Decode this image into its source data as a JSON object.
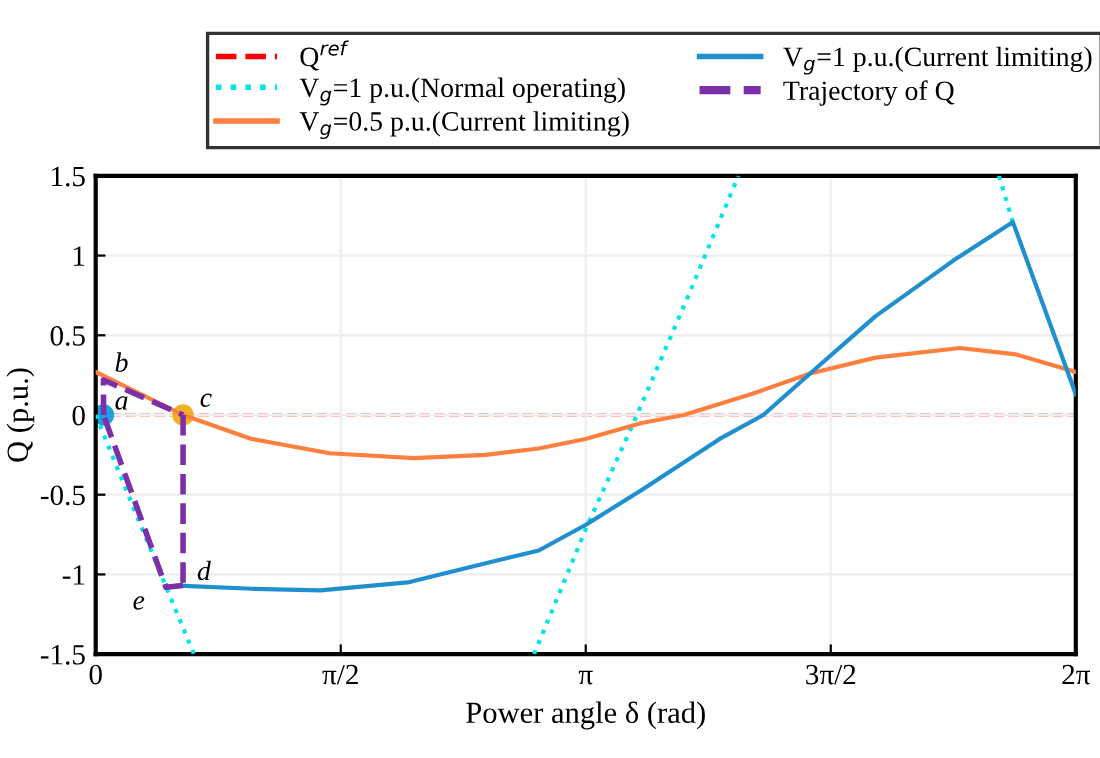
{
  "chart_data": {
    "type": "line",
    "xlabel": "Power angle δ (rad)",
    "ylabel": "Q (p.u.)",
    "xlim": [
      0,
      6.2832
    ],
    "ylim": [
      -1.5,
      1.5
    ],
    "xticks": [
      0,
      {
        "value": 1.5708,
        "label": "π/2"
      },
      {
        "value": 3.1416,
        "label": "π"
      },
      {
        "value": 4.7124,
        "label": "3π/2"
      },
      {
        "value": 6.2832,
        "label": "2π"
      }
    ],
    "yticks": [
      -1.5,
      -1,
      -0.5,
      0,
      0.5,
      1,
      1.5
    ],
    "grid": true,
    "legend": "top",
    "ref_lines": [
      {
        "axis": "y",
        "value": 0,
        "label": "Q$^{ref}$",
        "color": "#ff0000",
        "line_style": "dashed"
      }
    ],
    "series": [
      {
        "name": "V$_{g}$=1 p.u.(Normal operating)",
        "color": "#00e5e5",
        "line_style": "dotted",
        "x": [
          0,
          0.3,
          0.63,
          null,
          2.81,
          3.14,
          3.47,
          3.8,
          4.12,
          null,
          5.79,
          5.88
        ],
        "values": [
          0,
          -0.72,
          -1.5,
          null,
          -1.5,
          -0.72,
          0,
          0.75,
          1.5,
          null,
          1.5,
          1.21
        ]
      },
      {
        "name": "V$_{g}$=0.5 p.u.(Current limiting)",
        "color": "#ff7f3f",
        "line_style": "solid",
        "x": [
          0,
          0.56,
          1.0,
          1.5,
          2.04,
          2.5,
          2.84,
          3.14,
          3.5,
          3.77,
          4.2,
          4.58,
          5.0,
          5.54,
          5.9,
          6.2832
        ],
        "values": [
          0.27,
          0,
          -0.15,
          -0.24,
          -0.27,
          -0.25,
          -0.21,
          -0.15,
          -0.05,
          0,
          0.13,
          0.26,
          0.36,
          0.42,
          0.38,
          0.27
        ]
      },
      {
        "name": "V$_{g}$=1 p.u.(Current limiting)",
        "color": "#1f8fd0",
        "line_style": "solid",
        "x": [
          0.45,
          0.53,
          1.0,
          1.44,
          2.0,
          2.5,
          2.84,
          3.14,
          3.5,
          4.0,
          4.28,
          4.58,
          5.0,
          5.5,
          5.88,
          6.2832
        ],
        "values": [
          -1.08,
          -1.07,
          -1.09,
          -1.1,
          -1.05,
          -0.93,
          -0.85,
          -0.69,
          -0.47,
          -0.15,
          0,
          0.26,
          0.62,
          0.97,
          1.21,
          0.13
        ]
      },
      {
        "name": "Trajectory of Q",
        "color": "#7b2fa8",
        "line_style": "dashed",
        "x": [
          0.05,
          0.05,
          0.56,
          null,
          0.56,
          0.56,
          null,
          0.56,
          0.45,
          0.05
        ],
        "values": [
          0,
          0.22,
          0,
          null,
          0,
          -1.07,
          null,
          -1.07,
          -1.08,
          0
        ]
      },
      {
        "type": "scatter",
        "marker": "circle",
        "color": "#1f9fe0",
        "x": [
          0.05
        ],
        "values": [
          0
        ]
      },
      {
        "type": "scatter",
        "marker": "circle",
        "color": "#f0b020",
        "x": [
          0.56
        ],
        "values": [
          0
        ]
      }
    ],
    "annotations": [
      {
        "text": "a",
        "x": 0.05,
        "y": 0
      },
      {
        "text": "b",
        "x": 0.05,
        "y": 0.22
      },
      {
        "text": "c",
        "x": 0.56,
        "y": 0
      },
      {
        "text": "d",
        "x": 0.56,
        "y": -1.07
      },
      {
        "text": "e",
        "x": 0.45,
        "y": -1.08
      }
    ]
  }
}
